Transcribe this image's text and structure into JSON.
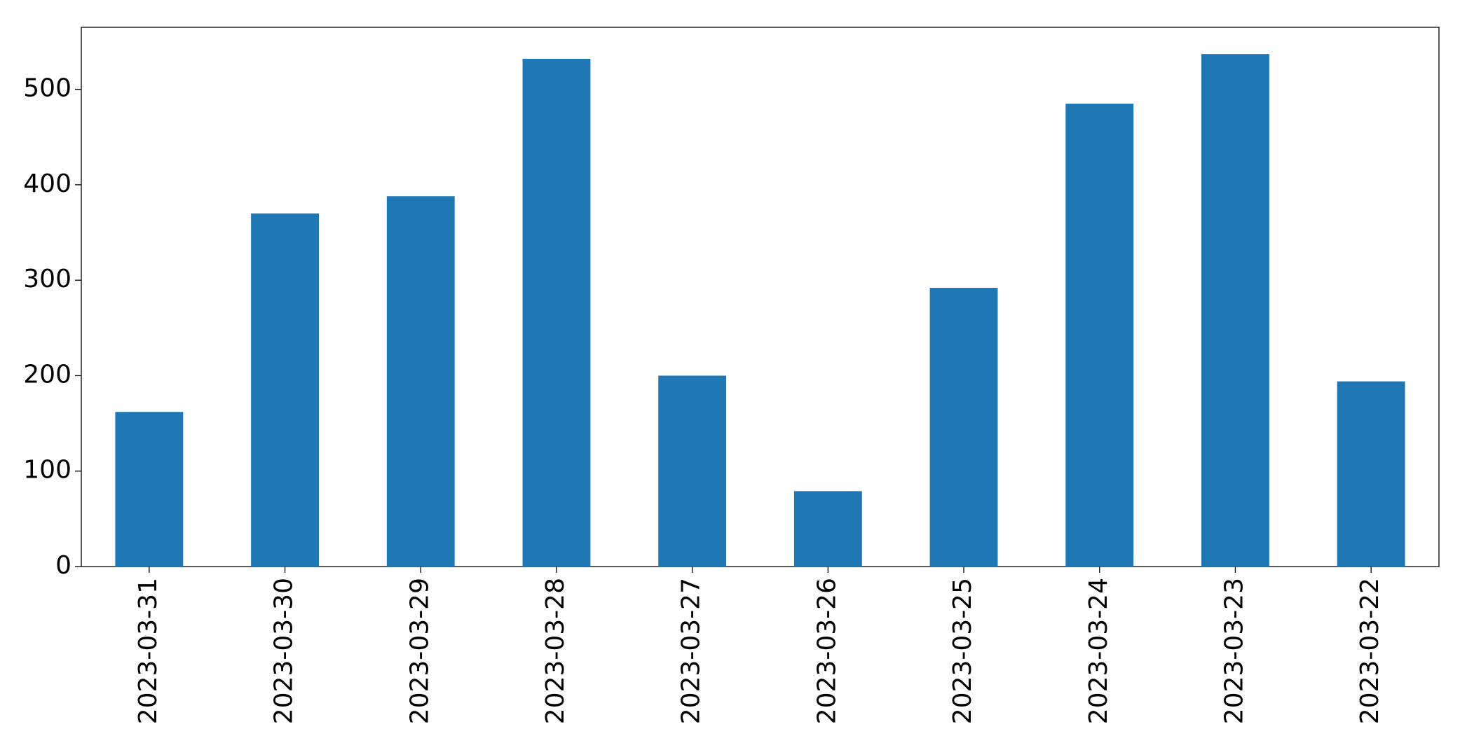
{
  "chart_data": {
    "type": "bar",
    "categories": [
      "2023-03-31",
      "2023-03-30",
      "2023-03-29",
      "2023-03-28",
      "2023-03-27",
      "2023-03-26",
      "2023-03-25",
      "2023-03-24",
      "2023-03-23",
      "2023-03-22"
    ],
    "values": [
      162,
      370,
      388,
      532,
      200,
      79,
      292,
      485,
      537,
      194
    ],
    "color": "#1f77b4",
    "ylim": [
      0,
      565
    ],
    "yticks": [
      0,
      100,
      200,
      300,
      400,
      500
    ],
    "grid": false
  }
}
